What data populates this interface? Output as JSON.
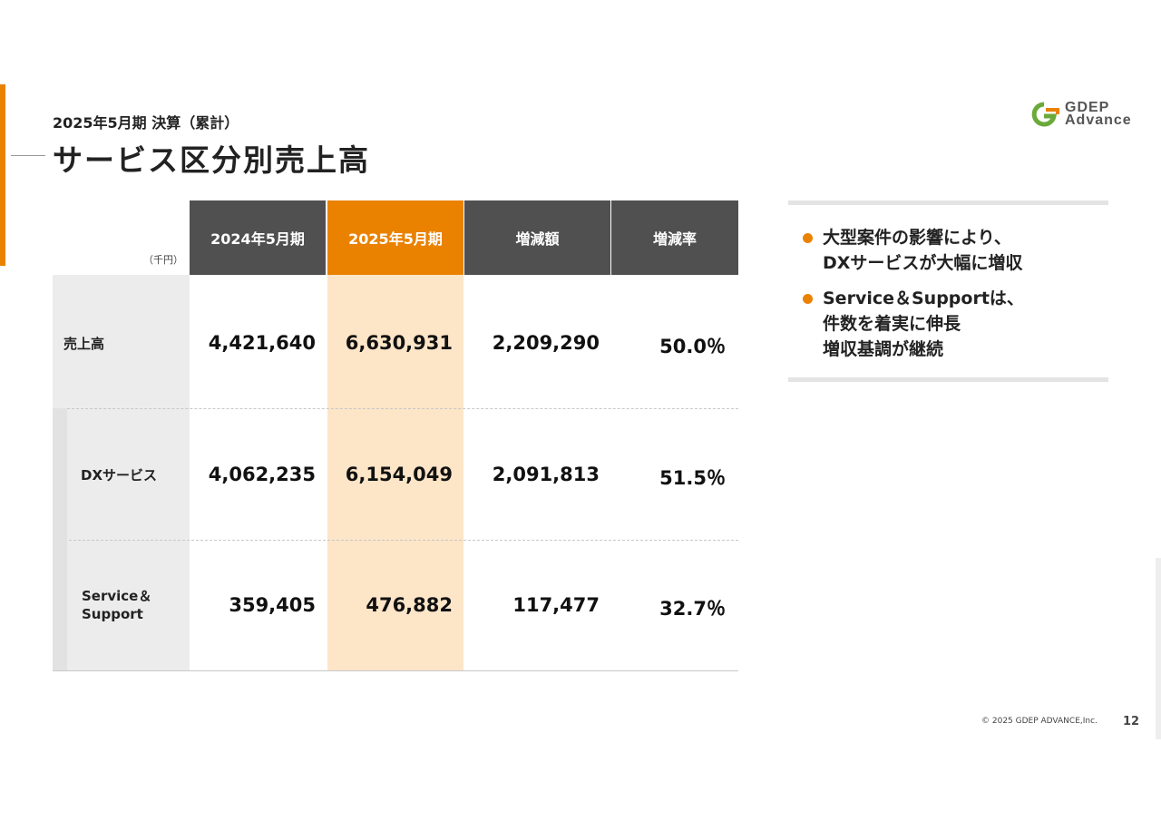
{
  "header": {
    "subtitle": "2025年5月期 決算（累計）",
    "title": "サービス区分別売上高"
  },
  "logo": {
    "line1": "GDEP",
    "line2": "Advance"
  },
  "table": {
    "unit": "（千円）",
    "columns": [
      "2024年5月期",
      "2025年5月期",
      "増減額",
      "増減率"
    ],
    "rows": [
      {
        "label": "売上高",
        "values": [
          "4,421,640",
          "6,630,931",
          "2,209,290",
          "50.0％"
        ]
      },
      {
        "label": "DXサービス",
        "values": [
          "4,062,235",
          "6,154,049",
          "2,091,813",
          "51.5％"
        ]
      },
      {
        "label": "Service＆\nSupport",
        "label_lines": [
          "Service＆",
          "Support"
        ],
        "values": [
          "359,405",
          "476,882",
          "117,477",
          "32.7％"
        ]
      }
    ]
  },
  "notes": [
    {
      "lines": [
        "大型案件の影響により、",
        "DXサービスが大幅に増収"
      ]
    },
    {
      "lines": [
        "Service＆Supportは、",
        "件数を着実に伸長",
        "増収基調が継続"
      ]
    }
  ],
  "footer": {
    "copyright": "© 2025 GDEP ADVANCE,Inc.",
    "page": "12"
  },
  "colors": {
    "accent": "#ea8200",
    "header_dark": "#505050",
    "highlight": "#fde5c8",
    "label_bg": "#ececec"
  }
}
